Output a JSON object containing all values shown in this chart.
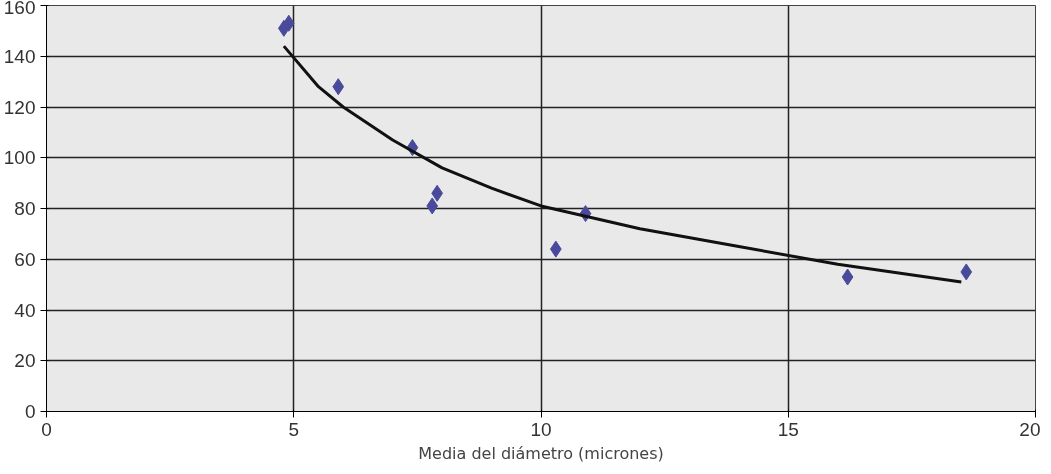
{
  "chart_data": {
    "type": "scatter",
    "xlabel": "Media del diámetro (micrones)",
    "xlim": [
      0,
      20
    ],
    "ylim": [
      0,
      160
    ],
    "xticks": [
      0,
      5,
      10,
      15,
      20
    ],
    "yticks": [
      0,
      20,
      40,
      60,
      80,
      100,
      120,
      140,
      160
    ],
    "grid": true,
    "marker": "diamond",
    "series": [
      {
        "color": "#4a4a9c",
        "x": [
          4.8,
          4.9,
          5.9,
          7.4,
          7.9,
          7.8,
          10.3,
          10.9,
          16.2,
          18.6
        ],
        "values": [
          151,
          153,
          128,
          104,
          86,
          81,
          64,
          78,
          53,
          55
        ]
      },
      {
        "type": "line",
        "color": "#111111",
        "marker": "none",
        "x": [
          4.8,
          5.5,
          6,
          7,
          8,
          9,
          10,
          12,
          14,
          16,
          18.5
        ],
        "values": [
          144,
          128,
          120,
          107,
          96,
          88,
          81,
          72,
          65,
          58,
          51
        ]
      }
    ]
  }
}
